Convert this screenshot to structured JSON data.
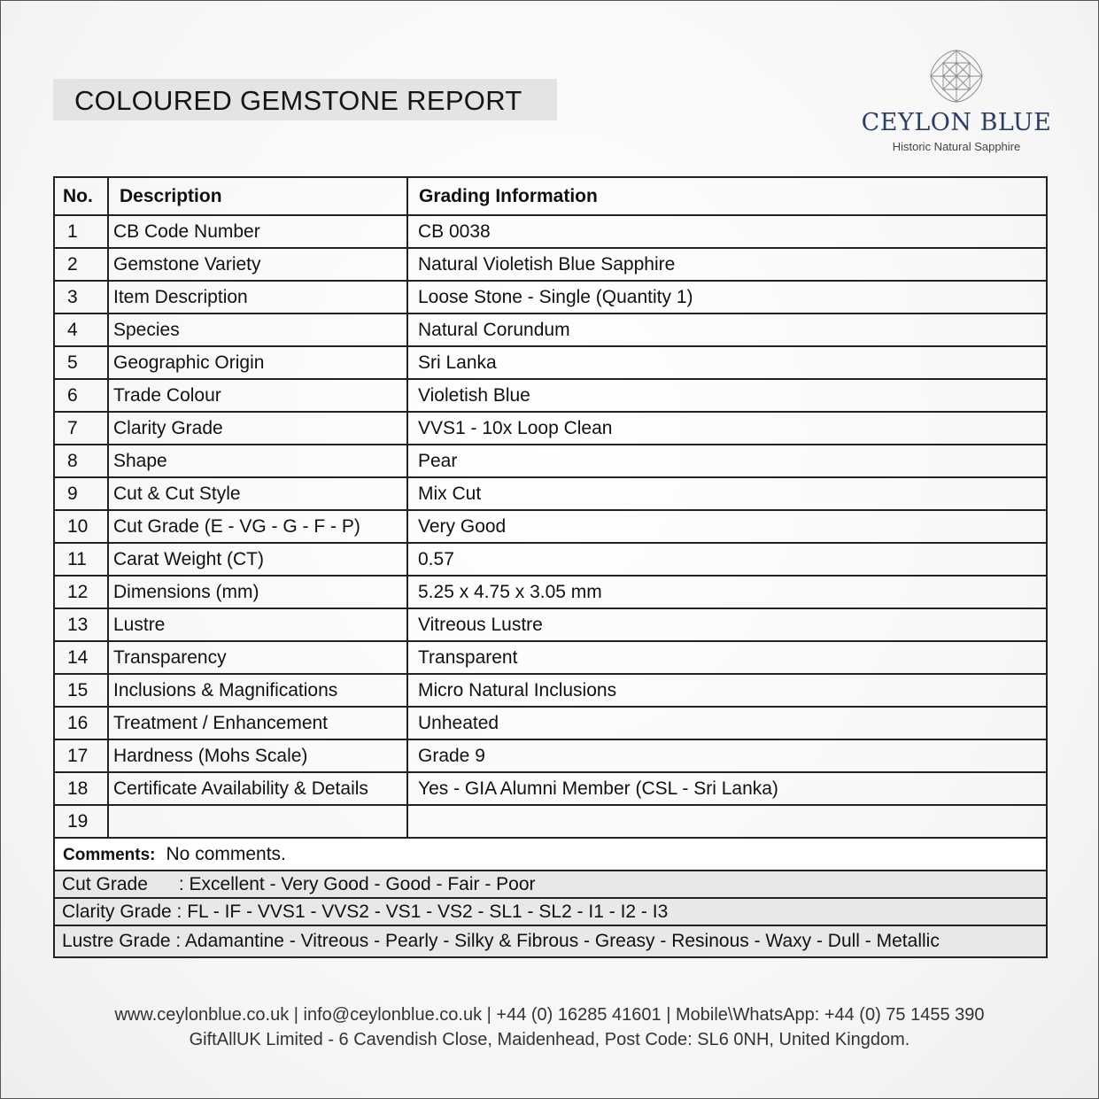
{
  "title": "COLOURED GEMSTONE REPORT",
  "logo": {
    "brand": "CEYLON BLUE",
    "tagline": "Historic Natural Sapphire",
    "color": "#2b3f63"
  },
  "table": {
    "headers": [
      "No.",
      "Description",
      "Grading Information"
    ],
    "rows": [
      {
        "no": "1",
        "desc": "CB Code Number",
        "val": "CB 0038"
      },
      {
        "no": "2",
        "desc": "Gemstone Variety",
        "val": "Natural Violetish Blue Sapphire"
      },
      {
        "no": "3",
        "desc": "Item Description",
        "val": "Loose Stone - Single (Quantity 1)"
      },
      {
        "no": "4",
        "desc": "Species",
        "val": "Natural Corundum"
      },
      {
        "no": "5",
        "desc": "Geographic Origin",
        "val": "Sri Lanka"
      },
      {
        "no": "6",
        "desc": "Trade Colour",
        "val": "Violetish Blue"
      },
      {
        "no": "7",
        "desc": "Clarity Grade",
        "val": "VVS1 - 10x Loop Clean"
      },
      {
        "no": "8",
        "desc": "Shape",
        "val": "Pear"
      },
      {
        "no": "9",
        "desc": "Cut & Cut Style",
        "val": "Mix Cut"
      },
      {
        "no": "10",
        "desc": "Cut Grade (E - VG - G - F - P)",
        "val": "Very Good"
      },
      {
        "no": "11",
        "desc": "Carat Weight (CT)",
        "val": "0.57"
      },
      {
        "no": "12",
        "desc": "Dimensions (mm)",
        "val": "5.25 x 4.75 x 3.05 mm"
      },
      {
        "no": "13",
        "desc": "Lustre",
        "val": "Vitreous Lustre"
      },
      {
        "no": "14",
        "desc": "Transparency",
        "val": "Transparent"
      },
      {
        "no": "15",
        "desc": "Inclusions & Magnifications",
        "val": "Micro Natural Inclusions"
      },
      {
        "no": "16",
        "desc": "Treatment / Enhancement",
        "val": "Unheated"
      },
      {
        "no": "17",
        "desc": "Hardness (Mohs Scale)",
        "val": "Grade 9"
      },
      {
        "no": "18",
        "desc": "Certificate Availability & Details",
        "val": "Yes - GIA Alumni Member (CSL - Sri Lanka)"
      },
      {
        "no": "19",
        "desc": "",
        "val": ""
      }
    ],
    "comments_label": "Comments:",
    "comments": "No comments.",
    "legend": [
      "Cut Grade      : Excellent - Very Good - Good - Fair - Poor",
      "Clarity Grade : FL - IF - VVS1 - VVS2 - VS1 - VS2 - SL1 - SL2 - I1 - I2 - I3",
      "Lustre Grade : Adamantine - Vitreous - Pearly - Silky & Fibrous - Greasy - Resinous - Waxy - Dull - Metallic"
    ]
  },
  "footer": {
    "line1": "www.ceylonblue.co.uk | info@ceylonblue.co.uk | +44 (0) 16285 41601 | Mobile\\WhatsApp: +44 (0) 75 1455 390",
    "line2": "GiftAllUK Limited - 6 Cavendish Close, Maidenhead, Post Code: SL6 0NH, United Kingdom."
  }
}
